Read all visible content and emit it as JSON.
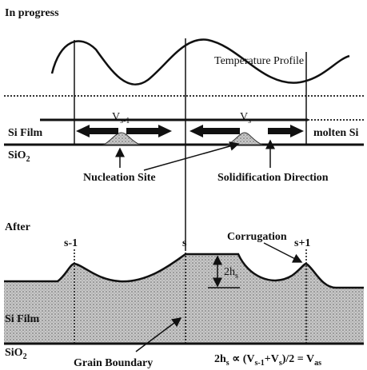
{
  "top": {
    "title": "In progress",
    "temperature_profile": "Temperature Profile",
    "si_film": "Si Film",
    "molten_si": "molten Si",
    "sio2": {
      "text": "SiO",
      "sub": "2"
    },
    "v_left": {
      "text": "V",
      "sub": "s-1"
    },
    "v_right": {
      "text": "V",
      "sub": "s"
    },
    "nucleation_site": "Nucleation Site",
    "solidification_direction": "Solidification Direction"
  },
  "bottom": {
    "title": "After",
    "s_minus": "s-1",
    "s": "s",
    "s_plus": "s+1",
    "corrugation": "Corrugation",
    "height": {
      "text": "2h",
      "sub": "s"
    },
    "si_film": "Si Film",
    "sio2": {
      "text": "SiO",
      "sub": "2"
    },
    "grain_boundary": "Grain Boundary",
    "formula": [
      {
        "text": "2h",
        "sub": "s"
      },
      {
        "text": " ∝ (V",
        "sub": "s-1"
      },
      {
        "text": "+V",
        "sub": "s"
      },
      {
        "text": ")/2 = V",
        "sub": "as"
      }
    ]
  }
}
